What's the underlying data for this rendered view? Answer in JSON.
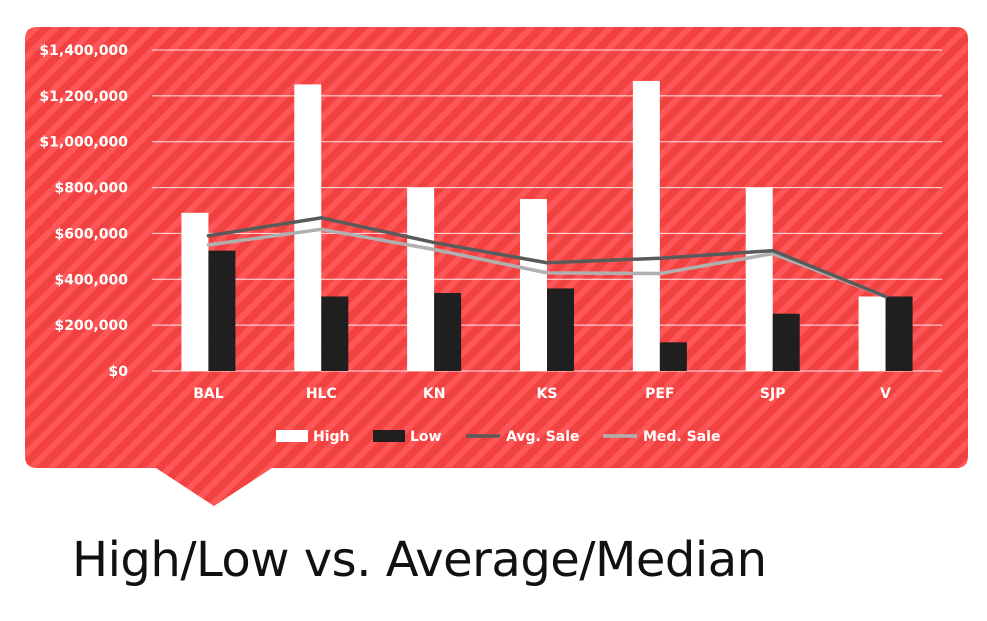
{
  "title": "High/Low vs. Average/Median",
  "colors": {
    "panel": "#f24141",
    "stripe": "#ff5555",
    "high": "#ffffff",
    "low": "#1f1f1f",
    "avg": "#5a5a5a",
    "median": "#b0b0b0",
    "grid": "#ffffff",
    "text": "#ffffff"
  },
  "chart_data": {
    "type": "bar",
    "categories": [
      "BAL",
      "HLC",
      "KN",
      "KS",
      "PEF",
      "SJP",
      "V"
    ],
    "series": [
      {
        "name": "High",
        "kind": "bar",
        "values": [
          690000,
          1250000,
          800000,
          750000,
          1265000,
          800000,
          325000
        ]
      },
      {
        "name": "Low",
        "kind": "bar",
        "values": [
          525000,
          325000,
          340000,
          360000,
          125000,
          250000,
          325000
        ]
      },
      {
        "name": "Avg. Sale",
        "kind": "line",
        "values": [
          590000,
          668000,
          560000,
          472000,
          492000,
          525000,
          325000
        ]
      },
      {
        "name": "Med. Sale",
        "kind": "line",
        "values": [
          550000,
          618000,
          530000,
          428000,
          425000,
          512000,
          325000
        ]
      }
    ],
    "ylim": [
      0,
      1400000
    ],
    "yticks": [
      0,
      200000,
      400000,
      600000,
      800000,
      1000000,
      1200000,
      1400000
    ],
    "ytick_labels": [
      "$0",
      "$200,000",
      "$400,000",
      "$600,000",
      "$800,000",
      "$1,000,000",
      "$1,200,000",
      "$1,400,000"
    ],
    "legend": [
      "High",
      "Low",
      "Avg. Sale",
      "Med. Sale"
    ],
    "legend_position": "bottom",
    "grid": true,
    "xlabel": "",
    "ylabel": ""
  }
}
